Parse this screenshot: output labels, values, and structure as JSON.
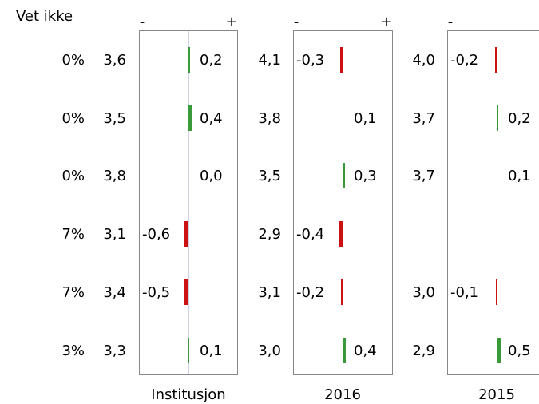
{
  "chart_data": {
    "type": "bar",
    "column_header": "Vet ikke",
    "sign_minus": "-",
    "sign_plus": "+",
    "rows": [
      {
        "vet_ikke": "0%"
      },
      {
        "vet_ikke": "0%"
      },
      {
        "vet_ikke": "0%"
      },
      {
        "vet_ikke": "7%"
      },
      {
        "vet_ikke": "7%"
      },
      {
        "vet_ikke": "3%"
      }
    ],
    "panels": [
      {
        "name": "Institusjon",
        "means": [
          "3,6",
          "3,5",
          "3,8",
          "3,1",
          "3,4",
          "3,3"
        ],
        "labels": [
          "0,2",
          "0,4",
          "0,0",
          "-0,6",
          "-0,5",
          "0,1"
        ],
        "values": [
          0.2,
          0.4,
          0.0,
          -0.6,
          -0.5,
          0.1
        ]
      },
      {
        "name": "2016",
        "means": [
          "4,1",
          "3,8",
          "3,5",
          "2,9",
          "3,1",
          "3,0"
        ],
        "labels": [
          "-0,3",
          "0,1",
          "0,3",
          "-0,4",
          "-0,2",
          "0,4"
        ],
        "values": [
          -0.3,
          0.1,
          0.3,
          -0.4,
          -0.2,
          0.4
        ]
      },
      {
        "name": "2015",
        "means": [
          "4,0",
          "3,7",
          "3,7",
          "",
          "3,0",
          "2,9"
        ],
        "labels": [
          "-0,2",
          "0,2",
          "0,1",
          "",
          "-0,1",
          "0,5"
        ],
        "values": [
          -0.2,
          0.2,
          0.1,
          null,
          -0.1,
          0.5
        ]
      }
    ],
    "colors": {
      "positive": "#3a9a3a",
      "negative": "#cc1111",
      "frame": "#888888",
      "zero_line": "#d0d0e8"
    }
  }
}
